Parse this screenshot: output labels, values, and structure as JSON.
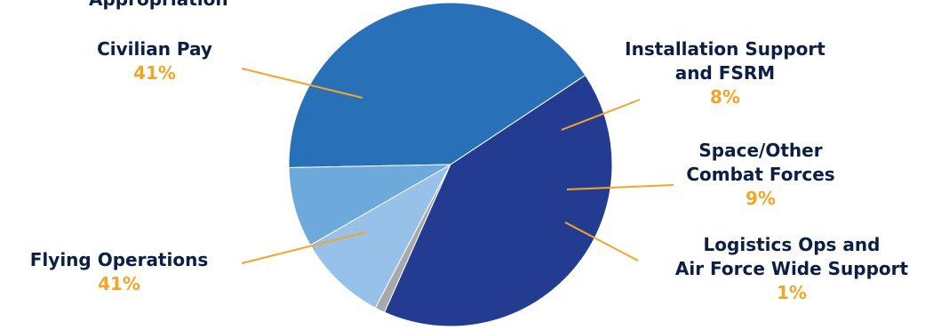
{
  "chart_data": {
    "type": "pie",
    "title": "Appropriation",
    "slices": [
      {
        "label_lines": [
          "Civilian Pay"
        ],
        "value": 41,
        "value_label": "41%",
        "color": "#2870b8"
      },
      {
        "label_lines": [
          "Installation Support",
          "and FSRM"
        ],
        "value": 8,
        "value_label": "8%",
        "color": "#6ea9dc"
      },
      {
        "label_lines": [
          "Space/Other",
          "Combat Forces"
        ],
        "value": 9,
        "value_label": "9%",
        "color": "#98c1e9"
      },
      {
        "label_lines": [
          "Logistics Ops and",
          "Air Force Wide Support"
        ],
        "value": 1,
        "value_label": "1%",
        "color": "#a7a9ac"
      },
      {
        "label_lines": [
          "Flying Operations"
        ],
        "value": 41,
        "value_label": "41%",
        "color": "#233b91"
      }
    ],
    "leader_line_color": "#f3a529"
  }
}
